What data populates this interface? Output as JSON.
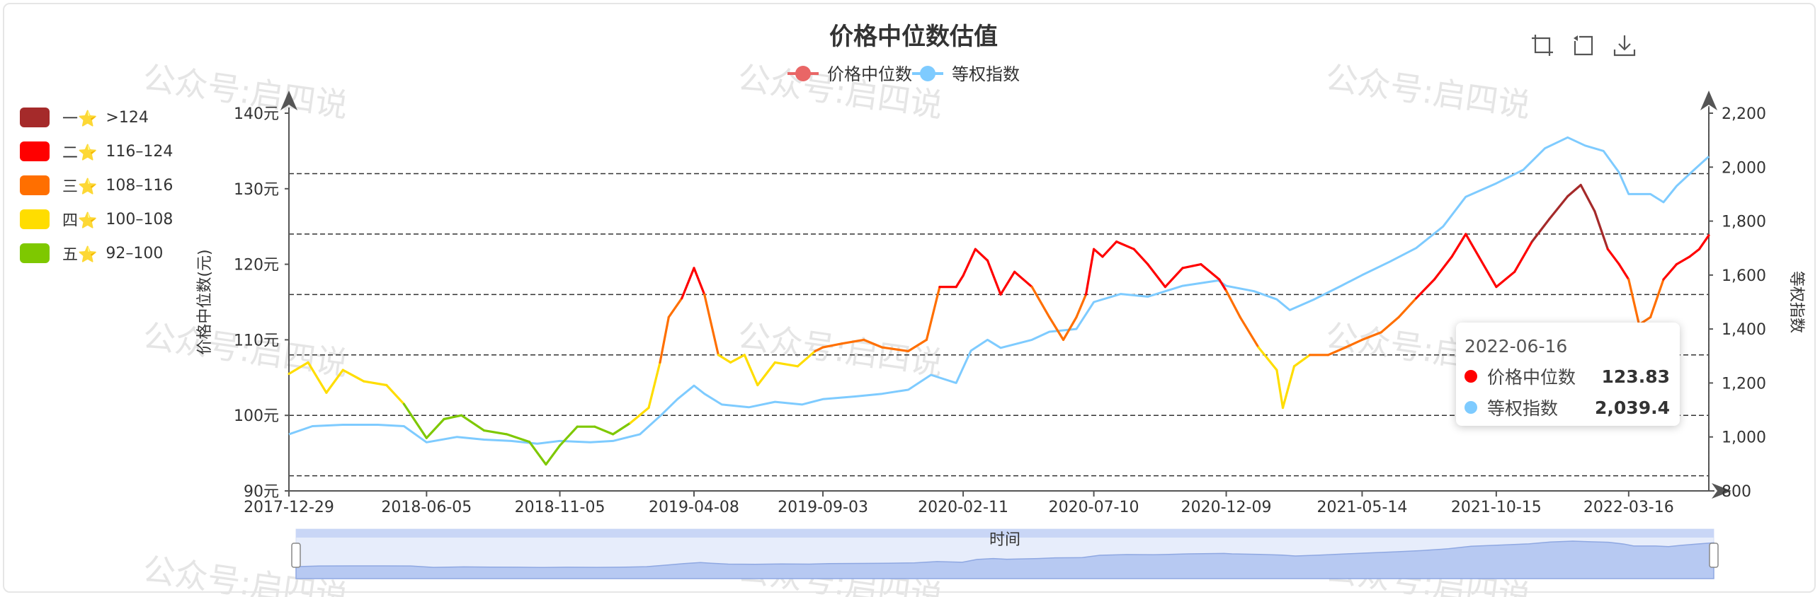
{
  "watermark": "公众号:启四说",
  "toolbar": {
    "icons": [
      "zoom-select-icon",
      "zoom-reset-icon",
      "download-icon"
    ]
  },
  "visual_map": {
    "items": [
      {
        "stars": "一⭐",
        "range": ">124",
        "color": "#a52a2a"
      },
      {
        "stars": "二⭐",
        "range": "116–124",
        "color": "#ff0000"
      },
      {
        "stars": "三⭐",
        "range": "108–116",
        "color": "#ff6f00"
      },
      {
        "stars": "四⭐",
        "range": "100–108",
        "color": "#ffdd00"
      },
      {
        "stars": "五⭐",
        "range": "92–100",
        "color": "#7ec800"
      }
    ]
  },
  "tooltip": {
    "date": "2022-06-16",
    "rows": [
      {
        "name": "价格中位数",
        "value": "123.83",
        "color": "#ff0000"
      },
      {
        "name": "等权指数",
        "value": "2,039.4",
        "color": "#7ecbff"
      }
    ]
  },
  "chart_data": {
    "type": "line",
    "title": "价格中位数估值",
    "legend": [
      "价格中位数",
      "等权指数"
    ],
    "legend_placement": "top-center",
    "xlabel": "",
    "ylabel_left": "价格中位数(元)",
    "ylabel_right": "等权指数",
    "slider_label": "时间",
    "x_ticks": [
      "2017-12-29",
      "2018-06-05",
      "2018-11-05",
      "2019-04-08",
      "2019-09-03",
      "2020-02-11",
      "2020-07-10",
      "2020-12-09",
      "2021-05-14",
      "2021-10-15",
      "2022-03-16"
    ],
    "x_range": [
      "2017-12-29",
      "2022-06-16"
    ],
    "y_left": {
      "range": [
        90,
        140
      ],
      "ticks": [
        90,
        100,
        110,
        120,
        130,
        140
      ],
      "tick_labels": [
        "90元",
        "100元",
        "110元",
        "120元",
        "130元",
        "140元"
      ]
    },
    "y_right": {
      "range": [
        800,
        2200
      ],
      "ticks": [
        800,
        1000,
        1200,
        1400,
        1600,
        1800,
        2000,
        2200
      ],
      "tick_labels": [
        "800",
        "1,000",
        "1,200",
        "1,400",
        "1,600",
        "1,800",
        "2,000",
        "2,200"
      ]
    },
    "mark_lines": [
      92,
      100,
      108,
      116,
      124,
      132
    ],
    "series": [
      {
        "name": "价格中位数",
        "axis": "left",
        "points": [
          [
            "2017-12-29",
            105.5
          ],
          [
            "2018-01-20",
            107.0
          ],
          [
            "2018-02-10",
            103.0
          ],
          [
            "2018-03-01",
            106.0
          ],
          [
            "2018-03-25",
            104.5
          ],
          [
            "2018-04-20",
            104.0
          ],
          [
            "2018-05-10",
            101.5
          ],
          [
            "2018-06-05",
            97.0
          ],
          [
            "2018-06-25",
            99.5
          ],
          [
            "2018-07-15",
            100.0
          ],
          [
            "2018-08-10",
            98.0
          ],
          [
            "2018-09-05",
            97.5
          ],
          [
            "2018-10-01",
            96.5
          ],
          [
            "2018-10-20",
            93.5
          ],
          [
            "2018-11-05",
            96.0
          ],
          [
            "2018-11-25",
            98.5
          ],
          [
            "2018-12-15",
            98.5
          ],
          [
            "2019-01-05",
            97.5
          ],
          [
            "2019-01-25",
            99.0
          ],
          [
            "2019-02-15",
            101.0
          ],
          [
            "2019-02-28",
            107.0
          ],
          [
            "2019-03-10",
            113.0
          ],
          [
            "2019-03-25",
            115.5
          ],
          [
            "2019-04-08",
            119.5
          ],
          [
            "2019-04-20",
            116.0
          ],
          [
            "2019-05-06",
            108.0
          ],
          [
            "2019-05-20",
            107.0
          ],
          [
            "2019-06-05",
            108.0
          ],
          [
            "2019-06-20",
            104.0
          ],
          [
            "2019-07-10",
            107.0
          ],
          [
            "2019-08-05",
            106.5
          ],
          [
            "2019-08-25",
            108.5
          ],
          [
            "2019-09-03",
            109.0
          ],
          [
            "2019-09-25",
            109.5
          ],
          [
            "2019-10-20",
            110.0
          ],
          [
            "2019-11-10",
            109.0
          ],
          [
            "2019-12-10",
            108.5
          ],
          [
            "2019-12-31",
            110.0
          ],
          [
            "2020-01-15",
            117.0
          ],
          [
            "2020-02-03",
            117.0
          ],
          [
            "2020-02-11",
            118.5
          ],
          [
            "2020-02-25",
            122.0
          ],
          [
            "2020-03-10",
            120.5
          ],
          [
            "2020-03-25",
            116.0
          ],
          [
            "2020-04-10",
            119.0
          ],
          [
            "2020-04-30",
            117.0
          ],
          [
            "2020-05-20",
            113.0
          ],
          [
            "2020-06-05",
            110.0
          ],
          [
            "2020-06-20",
            113.0
          ],
          [
            "2020-07-01",
            116.0
          ],
          [
            "2020-07-10",
            122.0
          ],
          [
            "2020-07-20",
            121.0
          ],
          [
            "2020-08-05",
            123.0
          ],
          [
            "2020-08-25",
            122.0
          ],
          [
            "2020-09-10",
            120.0
          ],
          [
            "2020-09-30",
            117.0
          ],
          [
            "2020-10-20",
            119.5
          ],
          [
            "2020-11-10",
            120.0
          ],
          [
            "2020-12-01",
            118.0
          ],
          [
            "2020-12-09",
            116.5
          ],
          [
            "2020-12-25",
            113.0
          ],
          [
            "2021-01-15",
            109.0
          ],
          [
            "2021-02-05",
            106.0
          ],
          [
            "2021-02-12",
            101.0
          ],
          [
            "2021-02-25",
            106.5
          ],
          [
            "2021-03-15",
            108.0
          ],
          [
            "2021-04-05",
            108.0
          ],
          [
            "2021-04-25",
            109.0
          ],
          [
            "2021-05-14",
            110.0
          ],
          [
            "2021-06-05",
            111.0
          ],
          [
            "2021-06-25",
            113.0
          ],
          [
            "2021-07-15",
            115.5
          ],
          [
            "2021-08-05",
            118.0
          ],
          [
            "2021-08-25",
            121.0
          ],
          [
            "2021-09-10",
            124.0
          ],
          [
            "2021-09-25",
            121.0
          ],
          [
            "2021-10-15",
            117.0
          ],
          [
            "2021-11-05",
            119.0
          ],
          [
            "2021-11-25",
            123.0
          ],
          [
            "2021-12-15",
            126.0
          ],
          [
            "2022-01-05",
            129.0
          ],
          [
            "2022-01-20",
            130.5
          ],
          [
            "2022-02-05",
            127.0
          ],
          [
            "2022-02-20",
            122.0
          ],
          [
            "2022-03-05",
            120.0
          ],
          [
            "2022-03-16",
            118.0
          ],
          [
            "2022-03-28",
            112.0
          ],
          [
            "2022-04-10",
            113.0
          ],
          [
            "2022-04-25",
            118.0
          ],
          [
            "2022-05-10",
            120.0
          ],
          [
            "2022-05-25",
            121.0
          ],
          [
            "2022-06-05",
            122.0
          ],
          [
            "2022-06-16",
            123.83
          ]
        ]
      },
      {
        "name": "等权指数",
        "axis": "right",
        "color": "#7ecbff",
        "points": [
          [
            "2017-12-29",
            1010
          ],
          [
            "2018-01-25",
            1040
          ],
          [
            "2018-03-01",
            1045
          ],
          [
            "2018-04-10",
            1045
          ],
          [
            "2018-05-10",
            1040
          ],
          [
            "2018-06-05",
            980
          ],
          [
            "2018-07-10",
            1000
          ],
          [
            "2018-08-10",
            990
          ],
          [
            "2018-09-10",
            985
          ],
          [
            "2018-10-10",
            975
          ],
          [
            "2018-11-05",
            985
          ],
          [
            "2018-12-10",
            980
          ],
          [
            "2019-01-05",
            985
          ],
          [
            "2019-02-05",
            1010
          ],
          [
            "2019-03-01",
            1080
          ],
          [
            "2019-03-20",
            1140
          ],
          [
            "2019-04-08",
            1190
          ],
          [
            "2019-04-20",
            1160
          ],
          [
            "2019-05-10",
            1120
          ],
          [
            "2019-06-10",
            1110
          ],
          [
            "2019-07-10",
            1130
          ],
          [
            "2019-08-10",
            1120
          ],
          [
            "2019-09-03",
            1140
          ],
          [
            "2019-10-10",
            1150
          ],
          [
            "2019-11-10",
            1160
          ],
          [
            "2019-12-10",
            1175
          ],
          [
            "2020-01-05",
            1230
          ],
          [
            "2020-02-03",
            1200
          ],
          [
            "2020-02-20",
            1320
          ],
          [
            "2020-03-10",
            1360
          ],
          [
            "2020-03-25",
            1330
          ],
          [
            "2020-04-30",
            1360
          ],
          [
            "2020-05-20",
            1390
          ],
          [
            "2020-06-20",
            1400
          ],
          [
            "2020-07-10",
            1500
          ],
          [
            "2020-08-10",
            1530
          ],
          [
            "2020-09-10",
            1520
          ],
          [
            "2020-10-20",
            1560
          ],
          [
            "2020-11-30",
            1580
          ],
          [
            "2020-12-09",
            1560
          ],
          [
            "2021-01-10",
            1540
          ],
          [
            "2021-02-05",
            1510
          ],
          [
            "2021-02-20",
            1470
          ],
          [
            "2021-03-20",
            1510
          ],
          [
            "2021-04-20",
            1560
          ],
          [
            "2021-05-14",
            1600
          ],
          [
            "2021-06-15",
            1650
          ],
          [
            "2021-07-15",
            1700
          ],
          [
            "2021-08-15",
            1780
          ],
          [
            "2021-09-10",
            1890
          ],
          [
            "2021-10-15",
            1940
          ],
          [
            "2021-11-15",
            1990
          ],
          [
            "2021-12-10",
            2070
          ],
          [
            "2022-01-05",
            2110
          ],
          [
            "2022-01-25",
            2080
          ],
          [
            "2022-02-15",
            2060
          ],
          [
            "2022-03-05",
            1980
          ],
          [
            "2022-03-16",
            1900
          ],
          [
            "2022-04-10",
            1900
          ],
          [
            "2022-04-25",
            1870
          ],
          [
            "2022-05-10",
            1930
          ],
          [
            "2022-05-30",
            1990
          ],
          [
            "2022-06-16",
            2039.4
          ]
        ]
      }
    ]
  }
}
